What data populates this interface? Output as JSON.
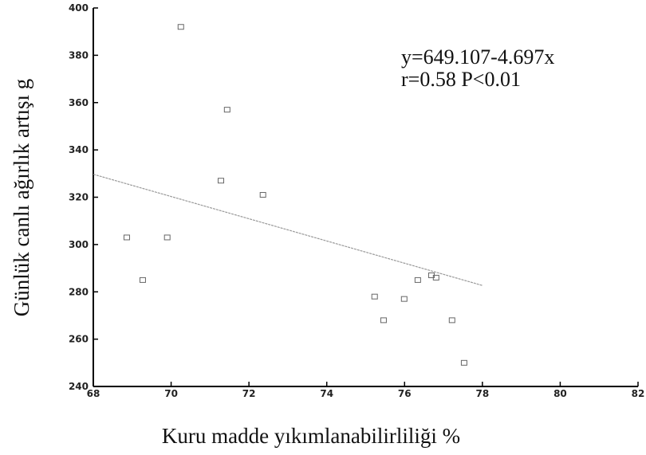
{
  "chart_data": {
    "type": "scatter",
    "x_label": "Kuru madde yıkımlanabilirliliği %",
    "y_label": "Günlük canlı ağırlık artışı g",
    "annotations": [
      "y=649.107-4.697x",
      "r=0.58 P<0.01"
    ],
    "x": [
      70.25,
      68.86,
      69.27,
      69.9,
      71.28,
      71.44,
      72.36,
      75.23,
      75.46,
      75.99,
      76.34,
      76.69,
      76.81,
      77.22,
      77.53
    ],
    "values": [
      392,
      303,
      285,
      303,
      327,
      357,
      321,
      278,
      268,
      277,
      285,
      287,
      286,
      268,
      250
    ],
    "color": "#666666",
    "fit": {
      "x": [
        68,
        78
      ],
      "values": [
        329.7,
        282.7
      ],
      "color": "#999999"
    },
    "xlim": [
      68,
      82
    ],
    "xticks": [
      68,
      70,
      72,
      74,
      76,
      78,
      80,
      82
    ],
    "ylim": [
      240,
      400
    ],
    "yticks": [
      240,
      260,
      280,
      300,
      320,
      340,
      360,
      380,
      400
    ]
  }
}
